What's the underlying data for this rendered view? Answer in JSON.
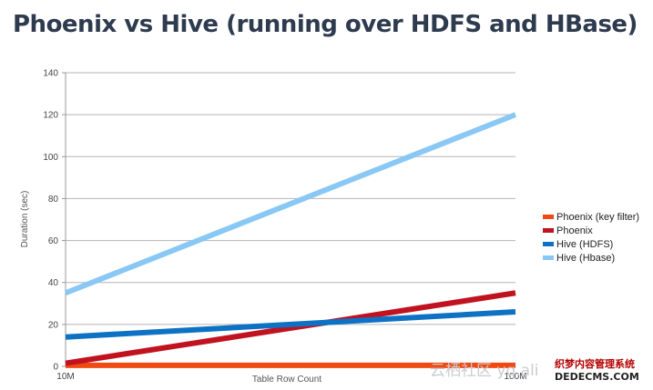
{
  "title": "Phoenix vs Hive (running over HDFS and HBase)",
  "chart_data": {
    "type": "line",
    "title": "Phoenix vs Hive (running over HDFS and HBase)",
    "xlabel": "Table Row Count",
    "ylabel": "Duration (sec)",
    "categories": [
      "10M",
      "100M"
    ],
    "ylim": [
      0,
      140
    ],
    "yticks": [
      0,
      20,
      40,
      60,
      80,
      100,
      120,
      140
    ],
    "grid": true,
    "legend_position": "right",
    "series": [
      {
        "name": "Phoenix (key filter)",
        "values": [
          0.5,
          0.5
        ],
        "color": "#f04a12"
      },
      {
        "name": "Phoenix",
        "values": [
          1.5,
          35
        ],
        "color": "#c1121f"
      },
      {
        "name": "Hive (HDFS)",
        "values": [
          14,
          26
        ],
        "color": "#0d72c4"
      },
      {
        "name": "Hive (Hbase)",
        "values": [
          35,
          120
        ],
        "color": "#89c8f5"
      }
    ]
  },
  "watermarks": {
    "cn_site": "云栖社区 yq.ali",
    "cn_brand": "织梦内容管理系统",
    "domain": "DEDECMS.COM"
  }
}
